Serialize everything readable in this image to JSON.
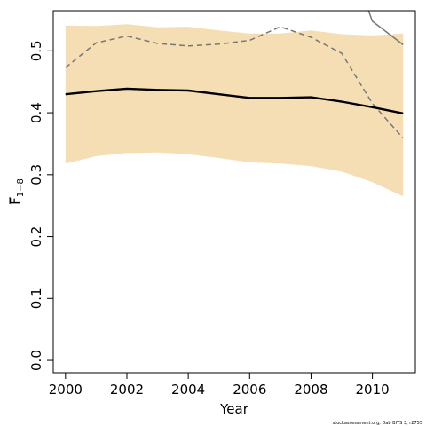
{
  "chart_data": {
    "type": "line",
    "xlabel": "Year",
    "ylabel_main": "F",
    "ylabel_sub": "1−8",
    "footer": "stockassessment.org, Dab BITS 3, r2755",
    "xlim": [
      1999.6,
      2011.4
    ],
    "ylim": [
      -0.02,
      0.565
    ],
    "x_ticks": [
      2000,
      2002,
      2004,
      2006,
      2008,
      2010
    ],
    "x_tick_labels": [
      "2000",
      "2002",
      "2004",
      "2006",
      "2008",
      "2010"
    ],
    "y_ticks": [
      0.0,
      0.1,
      0.2,
      0.3,
      0.4,
      0.5
    ],
    "y_tick_labels": [
      "0.0",
      "0.1",
      "0.2",
      "0.3",
      "0.4",
      "0.5"
    ],
    "band_color": "#f5deb3",
    "estimate_color": "#000000",
    "dashed_color": "#777777",
    "solid_grey_color": "#777777",
    "x": [
      2000,
      2001,
      2002,
      2003,
      2004,
      2005,
      2006,
      2007,
      2008,
      2009,
      2010,
      2011
    ],
    "ci_upper": [
      0.541,
      0.54,
      0.543,
      0.538,
      0.539,
      0.533,
      0.528,
      0.528,
      0.533,
      0.527,
      0.525,
      0.528
    ],
    "ci_lower": [
      0.318,
      0.33,
      0.335,
      0.336,
      0.333,
      0.327,
      0.32,
      0.318,
      0.314,
      0.305,
      0.288,
      0.265
    ],
    "estimate": [
      0.43,
      0.435,
      0.439,
      0.437,
      0.436,
      0.43,
      0.424,
      0.424,
      0.425,
      0.418,
      0.409,
      0.399
    ],
    "dashed_series": [
      0.473,
      0.513,
      0.524,
      0.512,
      0.508,
      0.511,
      0.517,
      0.539,
      0.522,
      0.496,
      0.415,
      0.359
    ],
    "solid_grey_series": {
      "x": [
        2009.8,
        2010.0,
        2011.0
      ],
      "y": [
        0.575,
        0.548,
        0.51
      ]
    }
  }
}
